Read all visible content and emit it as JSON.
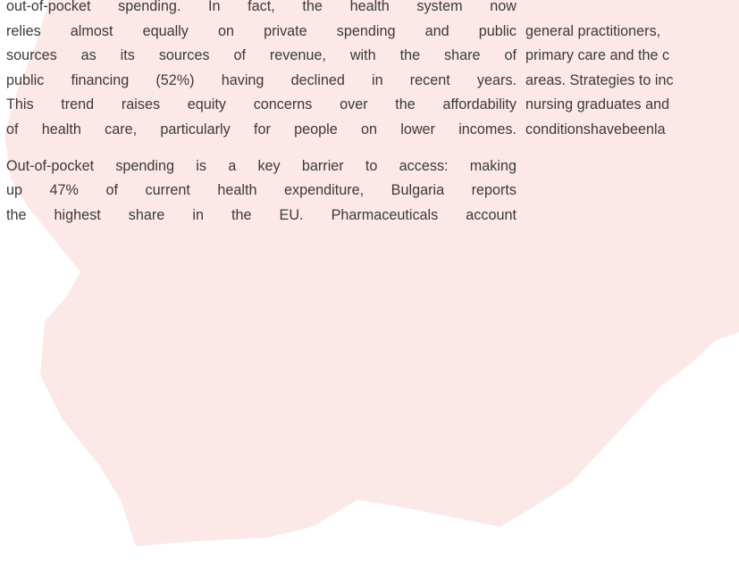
{
  "left_column": {
    "paragraphs": [
      [
        "out-of-pocket spending. In fact, the health system now",
        "relies almost equally on private spending and public",
        "sources as its sources of revenue, with the share of",
        "public financing (52%) having declined in recent years.",
        "This trend raises equity concerns over the affordability",
        "of health care, particularly for people on lower incomes."
      ],
      [
        "Out-of-pocket spending is a key barrier to access: making",
        "up 47% of current health expenditure, Bulgaria reports",
        "the highest share in the EU. Pharmaceuticals account"
      ]
    ]
  },
  "right_column": {
    "lines": [
      "general practitioners,",
      "primary care and the c",
      "areas. Strategies to inc",
      "nursing graduates and",
      "conditionshavebeenla"
    ]
  }
}
